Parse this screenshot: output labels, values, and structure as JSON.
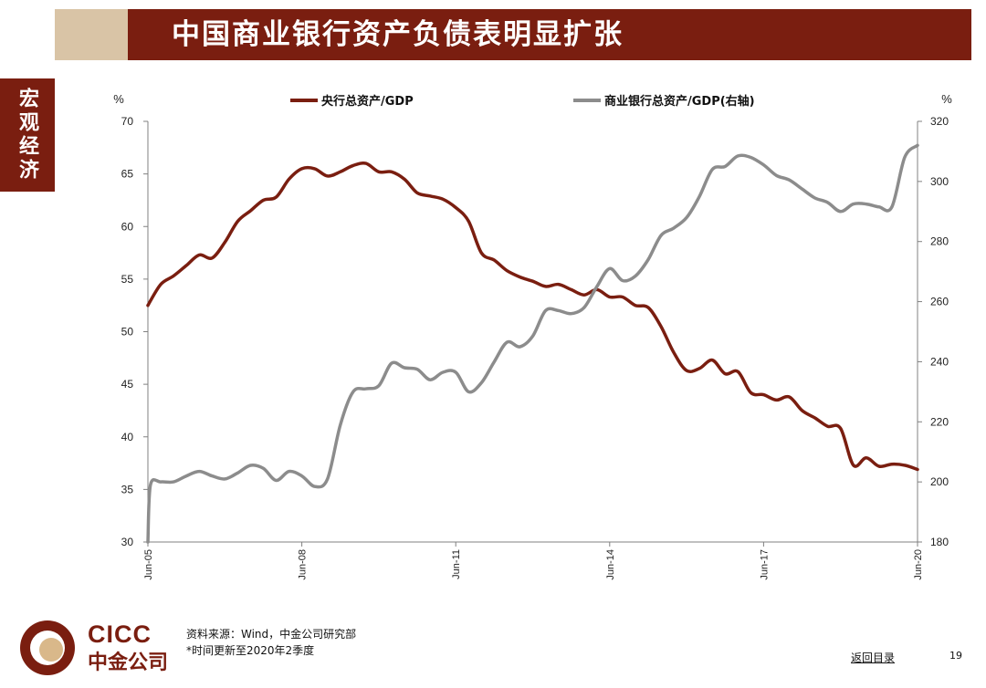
{
  "header": {
    "title": "中国商业银行资产负债表明显扩张"
  },
  "side_tab": {
    "label": "宏观经济"
  },
  "footer": {
    "source_line": "资料来源：Wind，中金公司研究部",
    "note_line": "*时间更新至2020年2季度",
    "logo_en": "CICC",
    "logo_cn": "中金公司",
    "back_link": "返回目录",
    "page_number": "19"
  },
  "colors": {
    "primary": "#7a1e10",
    "secondary": "#8c8c8c",
    "accent": "#d9c4a6"
  },
  "chart_data": {
    "type": "line",
    "title": "",
    "left_unit": "%",
    "right_unit": "%",
    "y_left": {
      "min": 30,
      "max": 70,
      "ticks": [
        30,
        35,
        40,
        45,
        50,
        55,
        60,
        65,
        70
      ]
    },
    "y_right": {
      "min": 180,
      "max": 320,
      "ticks": [
        180,
        200,
        220,
        240,
        260,
        280,
        300,
        320
      ]
    },
    "x_ticks": [
      {
        "label": "Jun-05",
        "t": 2005.5
      },
      {
        "label": "Jun-08",
        "t": 2008.5
      },
      {
        "label": "Jun-11",
        "t": 2011.5
      },
      {
        "label": "Jun-14",
        "t": 2014.5
      },
      {
        "label": "Jun-17",
        "t": 2017.5
      },
      {
        "label": "Jun-20",
        "t": 2020.5
      }
    ],
    "x_range": [
      2005.5,
      2020.5
    ],
    "legend_position": "top",
    "grid": false,
    "series": [
      {
        "name": "央行总资产/GDP",
        "axis": "left",
        "color": "#7a1e10",
        "points": [
          [
            2005.5,
            52.5
          ],
          [
            2005.75,
            54.5
          ],
          [
            2006.0,
            55.3
          ],
          [
            2006.25,
            56.3
          ],
          [
            2006.5,
            57.3
          ],
          [
            2006.75,
            57.0
          ],
          [
            2007.0,
            58.5
          ],
          [
            2007.25,
            60.5
          ],
          [
            2007.5,
            61.5
          ],
          [
            2007.75,
            62.5
          ],
          [
            2008.0,
            62.8
          ],
          [
            2008.25,
            64.5
          ],
          [
            2008.5,
            65.5
          ],
          [
            2008.75,
            65.5
          ],
          [
            2009.0,
            64.8
          ],
          [
            2009.25,
            65.2
          ],
          [
            2009.5,
            65.8
          ],
          [
            2009.75,
            66.0
          ],
          [
            2010.0,
            65.2
          ],
          [
            2010.25,
            65.2
          ],
          [
            2010.5,
            64.5
          ],
          [
            2010.75,
            63.2
          ],
          [
            2011.0,
            62.9
          ],
          [
            2011.25,
            62.6
          ],
          [
            2011.5,
            61.8
          ],
          [
            2011.75,
            60.5
          ],
          [
            2012.0,
            57.5
          ],
          [
            2012.25,
            56.8
          ],
          [
            2012.5,
            55.8
          ],
          [
            2012.75,
            55.2
          ],
          [
            2013.0,
            54.8
          ],
          [
            2013.25,
            54.3
          ],
          [
            2013.5,
            54.5
          ],
          [
            2013.75,
            54.0
          ],
          [
            2014.0,
            53.5
          ],
          [
            2014.25,
            54.0
          ],
          [
            2014.5,
            53.3
          ],
          [
            2014.75,
            53.3
          ],
          [
            2015.0,
            52.5
          ],
          [
            2015.25,
            52.3
          ],
          [
            2015.5,
            50.5
          ],
          [
            2015.75,
            48.0
          ],
          [
            2016.0,
            46.3
          ],
          [
            2016.25,
            46.5
          ],
          [
            2016.5,
            47.3
          ],
          [
            2016.75,
            46.0
          ],
          [
            2017.0,
            46.2
          ],
          [
            2017.25,
            44.2
          ],
          [
            2017.5,
            44.0
          ],
          [
            2017.75,
            43.5
          ],
          [
            2018.0,
            43.8
          ],
          [
            2018.25,
            42.5
          ],
          [
            2018.5,
            41.8
          ],
          [
            2018.75,
            41.0
          ],
          [
            2019.0,
            40.8
          ],
          [
            2019.25,
            37.3
          ],
          [
            2019.5,
            38.0
          ],
          [
            2019.75,
            37.2
          ],
          [
            2020.0,
            37.4
          ],
          [
            2020.25,
            37.3
          ],
          [
            2020.5,
            36.9
          ]
        ]
      },
      {
        "name": "商业银行总资产/GDP(右轴)",
        "axis": "right",
        "color": "#8c8c8c",
        "points": [
          [
            2005.5,
            180
          ],
          [
            2005.55,
            199
          ],
          [
            2005.75,
            200
          ],
          [
            2006.0,
            200
          ],
          [
            2006.25,
            202
          ],
          [
            2006.5,
            203.5
          ],
          [
            2006.75,
            202
          ],
          [
            2007.0,
            201
          ],
          [
            2007.25,
            203
          ],
          [
            2007.5,
            205.5
          ],
          [
            2007.75,
            204.5
          ],
          [
            2008.0,
            200.5
          ],
          [
            2008.25,
            203.5
          ],
          [
            2008.5,
            202
          ],
          [
            2008.75,
            198.5
          ],
          [
            2009.0,
            201
          ],
          [
            2009.25,
            219
          ],
          [
            2009.5,
            230
          ],
          [
            2009.75,
            231
          ],
          [
            2010.0,
            232
          ],
          [
            2010.25,
            239.5
          ],
          [
            2010.5,
            238
          ],
          [
            2010.75,
            237.5
          ],
          [
            2011.0,
            234
          ],
          [
            2011.25,
            236.5
          ],
          [
            2011.5,
            236.5
          ],
          [
            2011.75,
            230
          ],
          [
            2012.0,
            233
          ],
          [
            2012.25,
            240
          ],
          [
            2012.5,
            246.5
          ],
          [
            2012.75,
            245
          ],
          [
            2013.0,
            248.5
          ],
          [
            2013.25,
            257
          ],
          [
            2013.5,
            257
          ],
          [
            2013.75,
            256
          ],
          [
            2014.0,
            258
          ],
          [
            2014.25,
            265
          ],
          [
            2014.5,
            271
          ],
          [
            2014.75,
            267
          ],
          [
            2015.0,
            268.5
          ],
          [
            2015.25,
            274
          ],
          [
            2015.5,
            282
          ],
          [
            2015.75,
            284.5
          ],
          [
            2016.0,
            288
          ],
          [
            2016.25,
            295
          ],
          [
            2016.5,
            304
          ],
          [
            2016.75,
            305
          ],
          [
            2017.0,
            308.5
          ],
          [
            2017.25,
            308
          ],
          [
            2017.5,
            305.5
          ],
          [
            2017.75,
            302
          ],
          [
            2018.0,
            300.5
          ],
          [
            2018.25,
            297.5
          ],
          [
            2018.5,
            294.5
          ],
          [
            2018.75,
            293
          ],
          [
            2019.0,
            290
          ],
          [
            2019.25,
            292.5
          ],
          [
            2019.5,
            292.5
          ],
          [
            2019.75,
            291.5
          ],
          [
            2020.0,
            291.5
          ],
          [
            2020.25,
            308
          ],
          [
            2020.5,
            312
          ]
        ]
      }
    ]
  }
}
